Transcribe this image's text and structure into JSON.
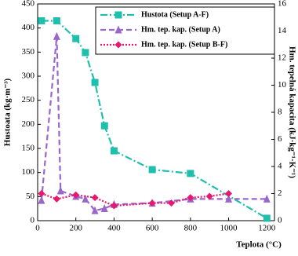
{
  "chart_data": {
    "type": "line",
    "x_label": "Teplota (°C)",
    "y_label": "Hustoata (kg·m⁻³)",
    "y2_label": "Hm. tepelná kapacita (kJ·kg⁻¹·K⁻¹)",
    "xlim": [
      0,
      1240
    ],
    "xticks": [
      0,
      200,
      400,
      600,
      800,
      1000,
      1200
    ],
    "ylim": [
      0,
      450
    ],
    "yticks": [
      0,
      50,
      100,
      150,
      200,
      250,
      300,
      350,
      400,
      450
    ],
    "y2lim": [
      0,
      16
    ],
    "y2ticks": [
      0,
      2,
      4,
      6,
      8,
      10,
      12,
      14,
      16
    ],
    "legend": "top",
    "series": [
      {
        "name": "Hustota (Setup A-F)",
        "color": "#1fbfae",
        "marker": "square",
        "dash": "9,3,2,3",
        "x": [
          20,
          100,
          200,
          250,
          300,
          350,
          400,
          600,
          800,
          1200
        ],
        "values": [
          415,
          415,
          378,
          349,
          287,
          197,
          145,
          106,
          98,
          5
        ]
      },
      {
        "name": "Hm. tep. kap. (Setup A)",
        "color": "#9966cc",
        "marker": "triangle",
        "dash": "7,4",
        "axis": "y2",
        "x": [
          20,
          100,
          120,
          200,
          250,
          300,
          350,
          400,
          600,
          800,
          1000,
          1200
        ],
        "values": [
          1.5,
          13.6,
          2.2,
          1.8,
          1.6,
          0.75,
          0.9,
          1.2,
          1.3,
          1.6,
          1.6,
          1.6
        ]
      },
      {
        "name": "Hm. tep. kap. (Setup B-F)",
        "color": "#e8186e",
        "marker": "diamond",
        "dash": "2,2",
        "axis": "y2",
        "x": [
          20,
          100,
          200,
          300,
          400,
          600,
          700,
          800,
          900,
          1000
        ],
        "values": [
          2.0,
          1.6,
          1.9,
          1.7,
          1.1,
          1.3,
          1.3,
          1.7,
          1.8,
          2.0
        ]
      }
    ]
  }
}
